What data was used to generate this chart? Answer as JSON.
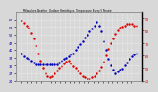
{
  "title": "Milwaukee Weather  Outdoor Humidity vs. Temperature Every 5 Minutes",
  "background_color": "#d8d8d8",
  "plot_bg_color": "#d8d8d8",
  "grid_color": "#ffffff",
  "temp_color": "#dd0000",
  "humidity_color": "#0000bb",
  "temp_data": [
    88,
    86,
    84,
    82,
    78,
    74,
    68,
    62,
    56,
    50,
    46,
    44,
    43,
    44,
    46,
    48,
    50,
    52,
    54,
    55,
    56,
    54,
    52,
    50,
    48,
    46,
    44,
    43,
    42,
    42,
    43,
    44,
    46,
    48,
    51,
    55,
    60,
    65,
    70,
    74,
    77,
    80,
    82,
    83,
    84,
    85,
    85,
    85,
    84,
    84
  ],
  "humidity_data": [
    38,
    36,
    35,
    34,
    33,
    32,
    31,
    31,
    31,
    31,
    31,
    31,
    31,
    31,
    31,
    31,
    32,
    33,
    34,
    35,
    36,
    37,
    38,
    40,
    42,
    44,
    46,
    48,
    50,
    52,
    54,
    56,
    58,
    56,
    52,
    46,
    40,
    34,
    30,
    27,
    25,
    26,
    27,
    28,
    30,
    32,
    34,
    36,
    37,
    38
  ],
  "temp_ylim": [
    40,
    95
  ],
  "humidity_ylim": [
    20,
    65
  ],
  "yticks_right": [
    40,
    50,
    60,
    70,
    80,
    90
  ],
  "yticks_left": [
    20,
    25,
    30,
    35,
    40,
    45,
    50,
    55,
    60
  ],
  "markersize": 1.5,
  "linewidth": 0.6,
  "linestyle": "none",
  "x_tick_count": 25
}
